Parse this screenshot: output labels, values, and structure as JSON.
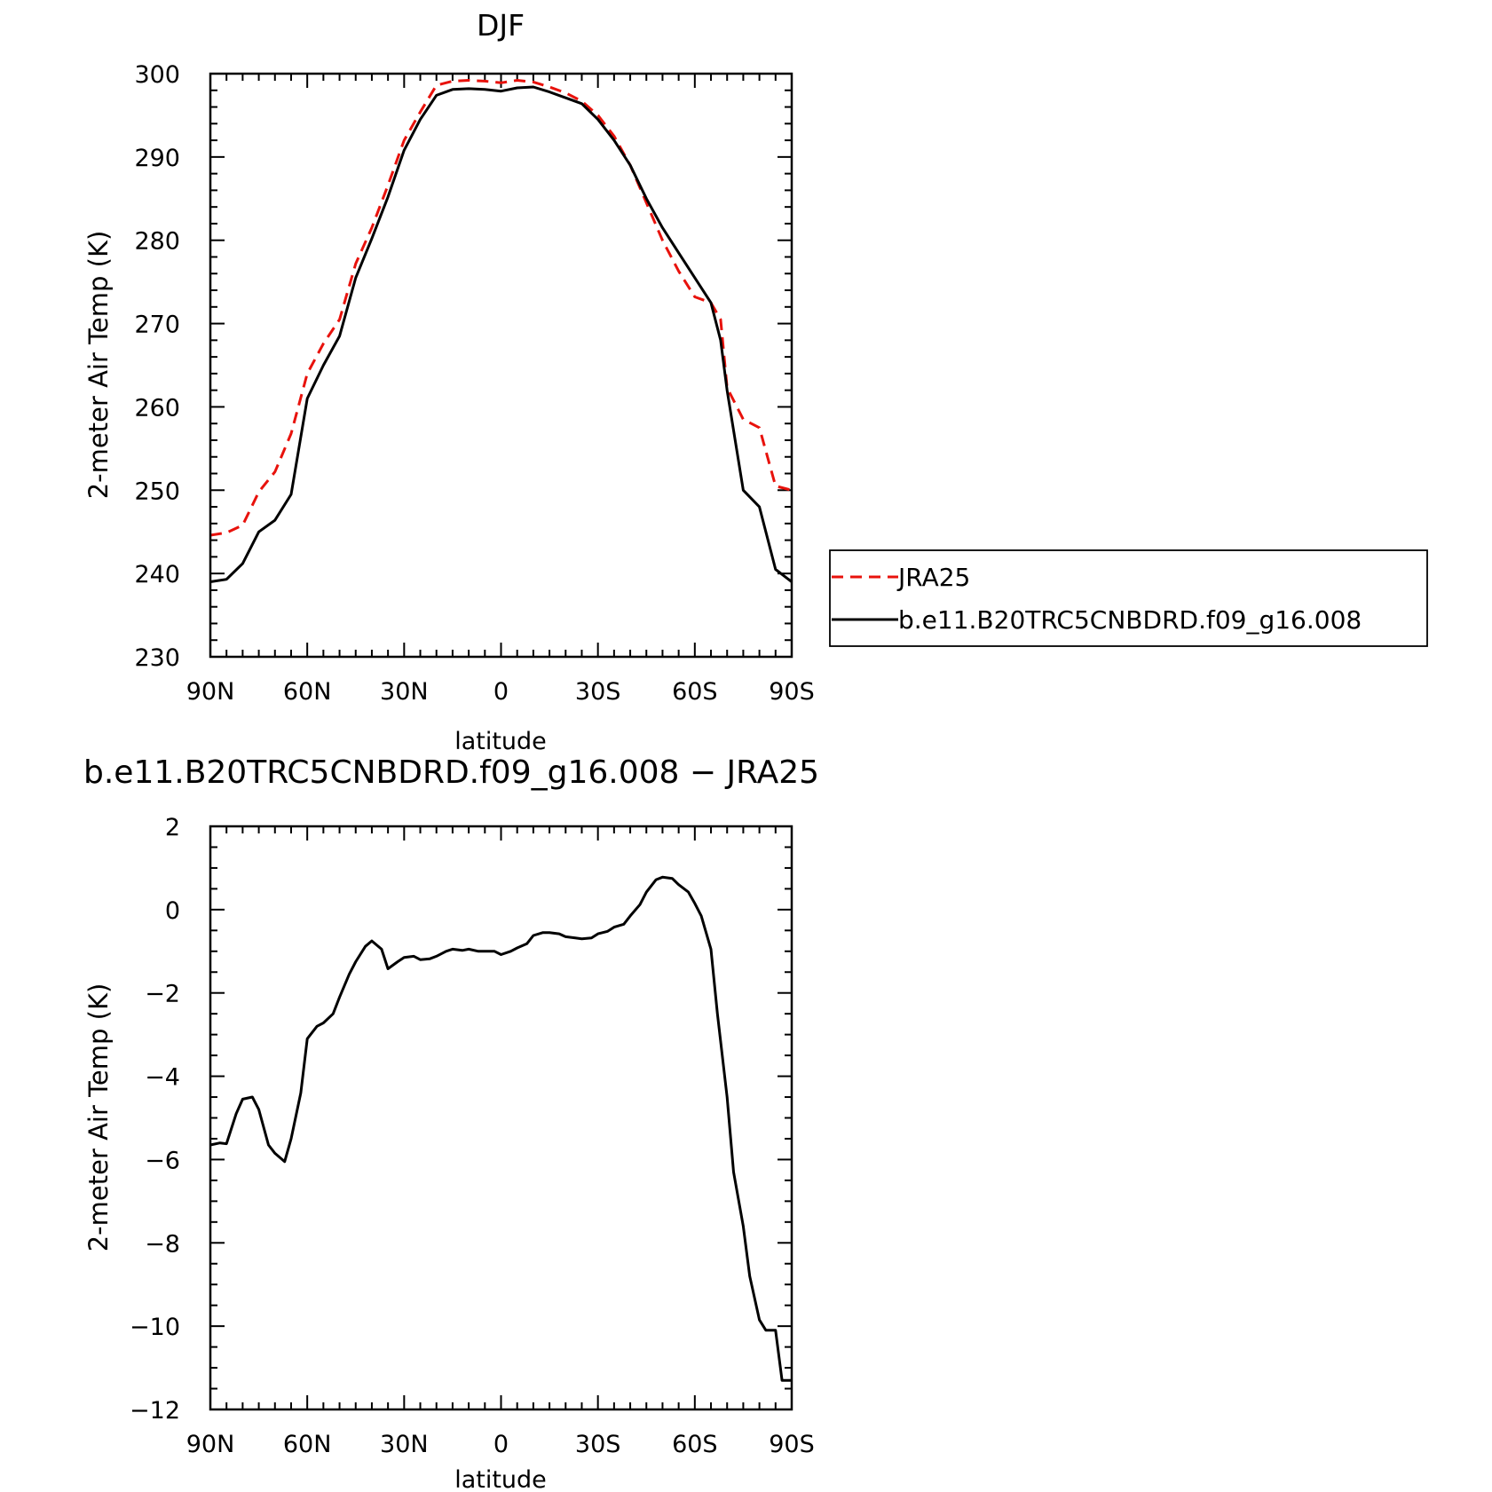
{
  "chart_data": [
    {
      "type": "line",
      "title": "DJF",
      "xlabel": "latitude",
      "ylabel": "2-meter Air Temp (K)",
      "xlim": [
        -90,
        90
      ],
      "ylim": [
        230,
        300
      ],
      "x_ticks": [
        {
          "value": -90,
          "label": "90N"
        },
        {
          "value": -60,
          "label": "60N"
        },
        {
          "value": -30,
          "label": "30N"
        },
        {
          "value": 0,
          "label": "0"
        },
        {
          "value": 30,
          "label": "30S"
        },
        {
          "value": 60,
          "label": "60S"
        },
        {
          "value": 90,
          "label": "90S"
        }
      ],
      "y_ticks": [
        230,
        240,
        250,
        260,
        270,
        280,
        290,
        300
      ],
      "y_tick_labels": [
        "230",
        "240",
        "250",
        "260",
        "270",
        "280",
        "290",
        "300"
      ],
      "legend": {
        "placement": "right",
        "entries": [
          "JRA25",
          "b.e11.B20TRC5CNBDRD.f09_g16.008"
        ]
      },
      "x": [
        -90,
        -85,
        -80,
        -75,
        -70,
        -65,
        -60,
        -55,
        -50,
        -45,
        -40,
        -35,
        -30,
        -25,
        -20,
        -15,
        -10,
        -5,
        0,
        5,
        10,
        15,
        20,
        25,
        30,
        35,
        40,
        45,
        50,
        55,
        60,
        65,
        68,
        70,
        75,
        80,
        85,
        90
      ],
      "series": [
        {
          "name": "JRA25",
          "color": "#e8120c",
          "dash": "dashed",
          "values": [
            244.6,
            244.9,
            245.8,
            249.8,
            252.2,
            256.8,
            264.0,
            267.6,
            270.5,
            277.2,
            281.5,
            286.6,
            292.0,
            295.4,
            298.6,
            299.1,
            299.2,
            299.1,
            298.9,
            299.2,
            299.0,
            298.4,
            297.7,
            296.7,
            295.0,
            292.5,
            289.0,
            284.5,
            280.0,
            276.3,
            273.2,
            272.5,
            270.5,
            262.3,
            258.5,
            257.5,
            250.5,
            250.0
          ]
        },
        {
          "name": "b.e11.B20TRC5CNBDRD.f09_g16.008",
          "color": "#000000",
          "dash": "solid",
          "values": [
            239.0,
            239.3,
            241.2,
            245.0,
            246.4,
            249.5,
            261.0,
            265.0,
            268.5,
            275.5,
            280.2,
            285.2,
            290.8,
            294.5,
            297.4,
            298.1,
            298.2,
            298.1,
            297.9,
            298.3,
            298.4,
            297.8,
            297.1,
            296.4,
            294.5,
            292.0,
            289.0,
            285.0,
            281.5,
            278.5,
            275.5,
            272.5,
            268.0,
            262.0,
            250.0,
            248.0,
            240.5,
            239.0
          ]
        }
      ]
    },
    {
      "type": "line",
      "title": "b.e11.B20TRC5CNBDRD.f09_g16.008 − JRA25",
      "xlabel": "latitude",
      "ylabel": "2-meter Air Temp (K)",
      "xlim": [
        -90,
        90
      ],
      "ylim": [
        -12,
        2
      ],
      "x_ticks": [
        {
          "value": -90,
          "label": "90N"
        },
        {
          "value": -60,
          "label": "60N"
        },
        {
          "value": -30,
          "label": "30N"
        },
        {
          "value": 0,
          "label": "0"
        },
        {
          "value": 30,
          "label": "30S"
        },
        {
          "value": 60,
          "label": "60S"
        },
        {
          "value": 90,
          "label": "90S"
        }
      ],
      "y_ticks": [
        -12,
        -10,
        -8,
        -6,
        -4,
        -2,
        0,
        2
      ],
      "y_tick_labels": [
        "−12",
        "−10",
        "−8",
        "−6",
        "−4",
        "−2",
        "0",
        "2"
      ],
      "x": [
        -90,
        -87,
        -85,
        -82,
        -80,
        -77,
        -75,
        -72,
        -70,
        -67,
        -65,
        -62,
        -60,
        -57,
        -55,
        -52,
        -50,
        -47,
        -45,
        -42,
        -40,
        -37,
        -35,
        -32,
        -30,
        -27,
        -25,
        -22,
        -20,
        -17,
        -15,
        -12,
        -10,
        -7,
        -5,
        -2,
        0,
        3,
        5,
        8,
        10,
        13,
        15,
        18,
        20,
        23,
        25,
        28,
        30,
        33,
        35,
        38,
        40,
        43,
        45,
        48,
        50,
        53,
        55,
        58,
        60,
        62,
        65,
        67,
        70,
        72,
        75,
        77,
        80,
        82,
        85,
        87,
        90
      ],
      "series": [
        {
          "name": "",
          "color": "#000000",
          "dash": "solid",
          "values": [
            -5.65,
            -5.6,
            -5.62,
            -4.9,
            -4.55,
            -4.5,
            -4.8,
            -5.65,
            -5.85,
            -6.05,
            -5.5,
            -4.4,
            -3.1,
            -2.8,
            -2.72,
            -2.5,
            -2.1,
            -1.55,
            -1.25,
            -0.88,
            -0.75,
            -0.95,
            -1.42,
            -1.25,
            -1.15,
            -1.12,
            -1.2,
            -1.18,
            -1.12,
            -1.0,
            -0.95,
            -0.98,
            -0.95,
            -1.0,
            -1.0,
            -1.0,
            -1.08,
            -1.0,
            -0.92,
            -0.82,
            -0.62,
            -0.55,
            -0.55,
            -0.58,
            -0.65,
            -0.68,
            -0.7,
            -0.68,
            -0.58,
            -0.52,
            -0.42,
            -0.35,
            -0.15,
            0.12,
            0.42,
            0.72,
            0.78,
            0.75,
            0.6,
            0.42,
            0.15,
            -0.15,
            -0.95,
            -2.5,
            -4.5,
            -6.3,
            -7.6,
            -8.8,
            -9.85,
            -10.1,
            -10.1,
            -11.3,
            -11.3
          ]
        }
      ]
    }
  ]
}
